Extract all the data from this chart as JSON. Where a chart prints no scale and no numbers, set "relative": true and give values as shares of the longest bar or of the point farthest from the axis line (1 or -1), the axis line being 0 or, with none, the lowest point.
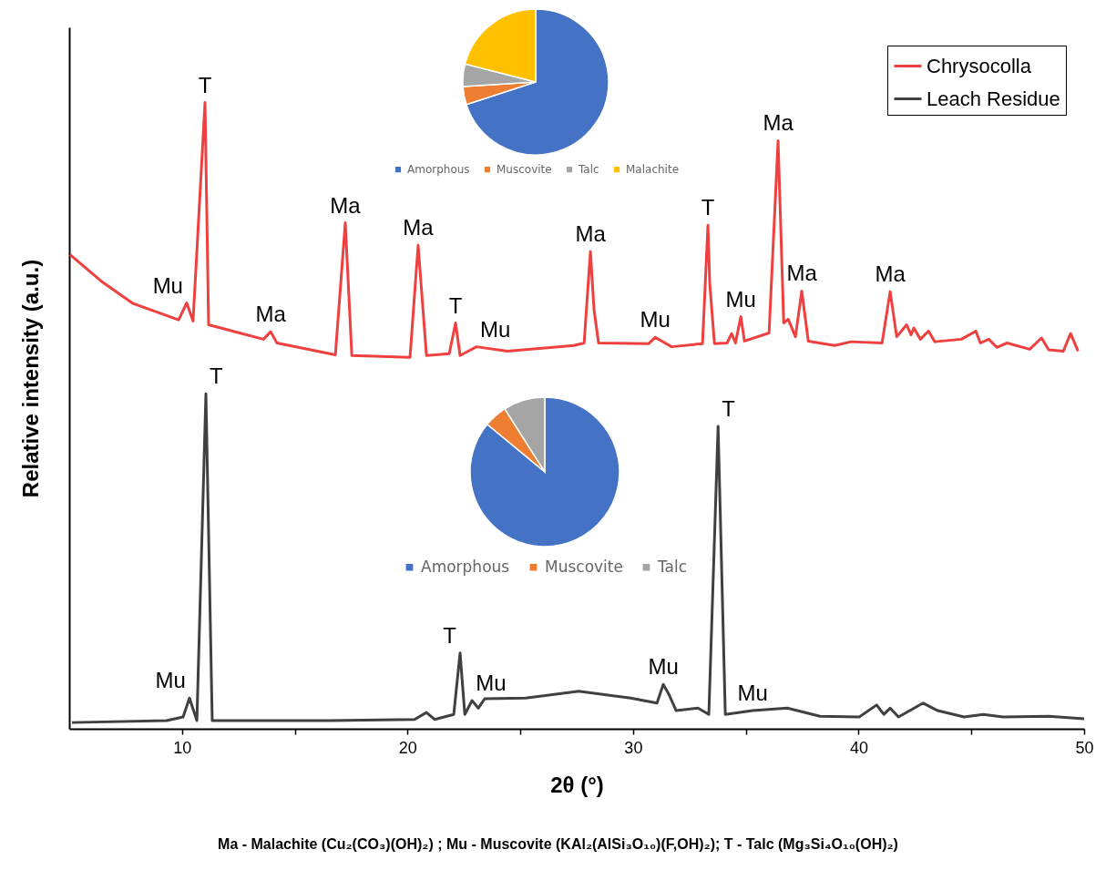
{
  "chart_data": [
    {
      "type": "line",
      "relative": true,
      "xlabel": "2θ (°)",
      "ylabel": "Relative intensity (a.u.)",
      "xlim": [
        5,
        50
      ],
      "xticks": [
        10,
        {
          "value": 15,
          "label": null
        },
        20,
        {
          "value": 25,
          "label": null
        },
        30,
        {
          "value": 35,
          "label": null
        },
        40,
        {
          "value": 45,
          "label": null
        },
        50
      ],
      "legend": "top right",
      "series": [
        {
          "name": "Chrysocolla",
          "color": "#ef4040",
          "x": [
            5.04,
            6.41,
            7.83,
            9.85,
            10.21,
            10.49,
            11.02,
            11.18,
            13.61,
            13.93,
            14.21,
            16.8,
            17.24,
            17.53,
            20.11,
            20.47,
            20.84,
            21.85,
            22.13,
            22.33,
            23.06,
            24.43,
            27.38,
            27.83,
            28.11,
            28.27,
            28.47,
            30.7,
            30.98,
            31.71,
            33.08,
            33.32,
            33.4,
            33.61,
            34.17,
            34.37,
            34.54,
            34.78,
            34.94,
            36.03,
            36.43,
            36.68,
            36.88,
            37.2,
            37.48,
            37.77,
            38.94,
            39.67,
            41.04,
            41.4,
            41.69,
            42.13,
            42.33,
            42.45,
            42.74,
            43.1,
            43.38,
            44.56,
            45.2,
            45.4,
            45.77,
            46.13,
            46.58,
            47.59,
            48.11,
            48.43,
            49.08,
            49.4,
            49.73
          ],
          "values": [
            0.757,
            0.715,
            0.679,
            0.653,
            0.68,
            0.651,
            1,
            0.645,
            0.622,
            0.634,
            0.616,
            0.597,
            0.808,
            0.596,
            0.593,
            0.772,
            0.596,
            0.599,
            0.648,
            0.596,
            0.61,
            0.603,
            0.612,
            0.616,
            0.762,
            0.669,
            0.616,
            0.615,
            0.625,
            0.61,
            0.615,
            0.804,
            0.711,
            0.615,
            0.616,
            0.631,
            0.616,
            0.658,
            0.619,
            0.632,
            0.939,
            0.648,
            0.654,
            0.626,
            0.699,
            0.619,
            0.612,
            0.618,
            0.616,
            0.698,
            0.626,
            0.645,
            0.629,
            0.64,
            0.622,
            0.635,
            0.618,
            0.622,
            0.635,
            0.616,
            0.622,
            0.609,
            0.616,
            0.606,
            0.624,
            0.605,
            0.603,
            0.631,
            0.603
          ]
        },
        {
          "name": "Leach Residue",
          "color": "#404040",
          "x": [
            5.12,
            9.32,
            10.05,
            10.33,
            10.66,
            11.06,
            11.34,
            16.56,
            20.31,
            20.84,
            21.2,
            22.05,
            22.33,
            22.54,
            22.86,
            23.14,
            23.42,
            25.24,
            27.59,
            29.89,
            31.06,
            31.34,
            31.59,
            31.91,
            32.88,
            33.36,
            33.77,
            34.09,
            35.3,
            36.84,
            38.29,
            40.03,
            40.8,
            41.12,
            41.4,
            41.77,
            42.86,
            43.51,
            44.68,
            45.53,
            46.41,
            48.43,
            50
          ],
          "values": [
            0.01,
            0.013,
            0.019,
            0.049,
            0.013,
            0.535,
            0.013,
            0.013,
            0.015,
            0.026,
            0.015,
            0.023,
            0.121,
            0.023,
            0.045,
            0.033,
            0.048,
            0.049,
            0.06,
            0.049,
            0.041,
            0.071,
            0.055,
            0.029,
            0.033,
            0.023,
            0.483,
            0.023,
            0.029,
            0.033,
            0.02,
            0.019,
            0.038,
            0.023,
            0.033,
            0.019,
            0.041,
            0.029,
            0.019,
            0.023,
            0.019,
            0.02,
            0.016
          ]
        }
      ],
      "annotations": [
        {
          "text": "Mu",
          "x": 10.21,
          "y": 0.68
        },
        {
          "text": "T",
          "x": 11.02,
          "y": 1
        },
        {
          "text": "Ma",
          "x": 13.93,
          "y": 0.634
        },
        {
          "text": "Ma",
          "x": 17.24,
          "y": 0.808
        },
        {
          "text": "Ma",
          "x": 20.47,
          "y": 0.772
        },
        {
          "text": "T",
          "x": 22.13,
          "y": 0.648
        },
        {
          "text": "Mu",
          "x": 23.06,
          "y": 0.61
        },
        {
          "text": "Ma",
          "x": 28.11,
          "y": 0.762
        },
        {
          "text": "Mu",
          "x": 30.98,
          "y": 0.625
        },
        {
          "text": "T",
          "x": 33.32,
          "y": 0.804
        },
        {
          "text": "Mu",
          "x": 34.78,
          "y": 0.658
        },
        {
          "text": "Ma",
          "x": 36.43,
          "y": 0.939
        },
        {
          "text": "Ma",
          "x": 37.48,
          "y": 0.699
        },
        {
          "text": "Ma",
          "x": 41.4,
          "y": 0.698
        },
        {
          "text": "Mu",
          "x": 10.33,
          "y": 0.049
        },
        {
          "text": "T",
          "x": 11.06,
          "y": 0.535
        },
        {
          "text": "T",
          "x": 22.33,
          "y": 0.121
        },
        {
          "text": "Mu",
          "x": 22.86,
          "y": 0.045
        },
        {
          "text": "Mu",
          "x": 31.34,
          "y": 0.071
        },
        {
          "text": "T",
          "x": 33.77,
          "y": 0.483
        },
        {
          "text": "Mu",
          "x": 35.3,
          "y": 0.029
        },
        "Ma - Malachite (Cu₂(CO₃)(OH)₂) ; Mu - Muscovite (KAl₂(AlSi₃O₁₀)(F,OH)₂); T - Talc (Mg₃Si₄O₁₀(OH)₂)"
      ]
    },
    {
      "type": "pie",
      "categories": [
        "Amorphous",
        "Muscovite",
        "Talc",
        "Malachite"
      ],
      "values": [
        70,
        4,
        5,
        21
      ],
      "colors": [
        "#4472c4",
        "#ed7d31",
        "#a5a5a5",
        "#ffc000"
      ],
      "legend": "bottom"
    },
    {
      "type": "pie",
      "categories": [
        "Amorphous",
        "Muscovite",
        "Talc"
      ],
      "values": [
        86,
        5,
        9
      ],
      "colors": [
        "#4472c4",
        "#ed7d31",
        "#a5a5a5"
      ],
      "legend": "bottom"
    }
  ]
}
